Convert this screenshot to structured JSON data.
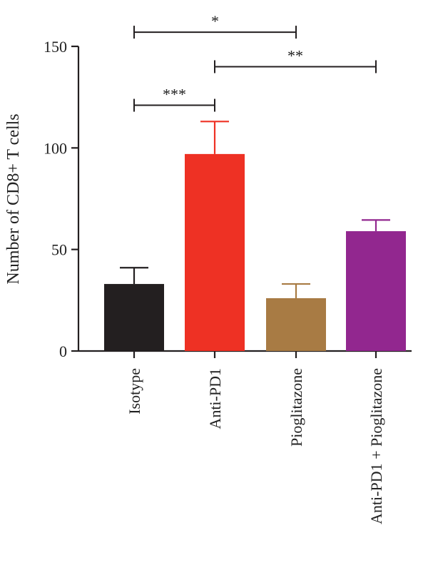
{
  "chart_data": {
    "type": "bar",
    "title": "",
    "xlabel": "",
    "ylabel": "Number of CD8+ T cells",
    "ylim": [
      0,
      150
    ],
    "yticks": [
      0,
      50,
      100,
      150
    ],
    "grid": false,
    "categories": [
      "Isotype",
      "Anti-PD1",
      "Pioglitazone",
      "Anti-PD1 + Pioglitazone"
    ],
    "values": [
      33,
      97,
      26,
      59
    ],
    "errors": [
      8,
      16,
      7,
      5.5
    ],
    "colors": [
      "#231f20",
      "#ee3124",
      "#a87b44",
      "#92278f"
    ],
    "significance": [
      {
        "from": 0,
        "to": 2,
        "y": 157,
        "label": "*"
      },
      {
        "from": 1,
        "to": 3,
        "y": 140,
        "label": "**"
      },
      {
        "from": 0,
        "to": 1,
        "y": 121,
        "label": "***"
      }
    ]
  }
}
